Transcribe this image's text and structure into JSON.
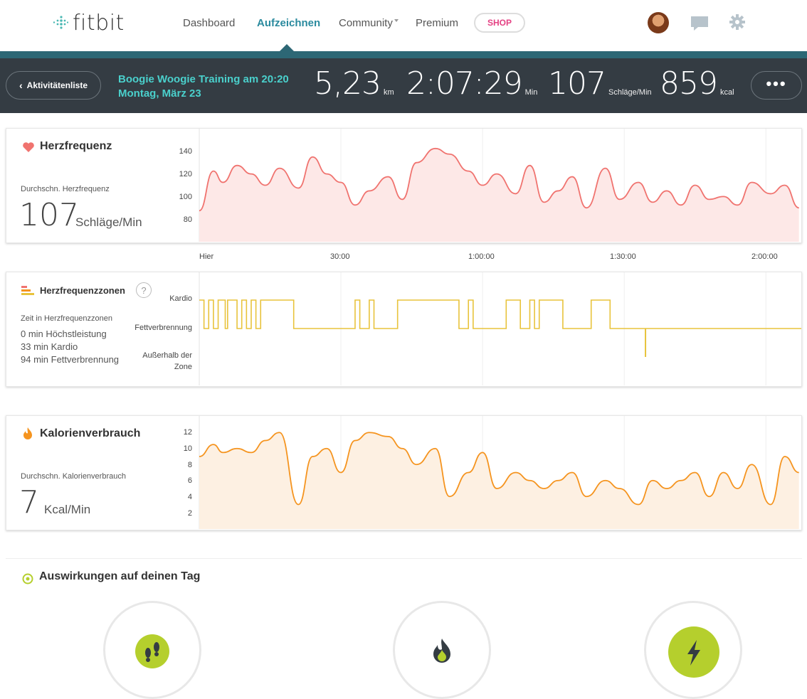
{
  "nav": {
    "logo": "fitbit",
    "links": [
      "Dashboard",
      "Aufzeichnen",
      "Community",
      "Premium"
    ],
    "shop": "SHOP"
  },
  "header": {
    "back": "Aktivitätenliste",
    "title": "Boogie Woogie Training am 20:20",
    "date": "Montag, März 23",
    "stats": [
      {
        "value": "5,23",
        "unit": "km"
      },
      {
        "value": "2:07:29",
        "unit": "Min"
      },
      {
        "value": "107",
        "unit": "Schläge/Min"
      },
      {
        "value": "859",
        "unit": "kcal"
      }
    ],
    "more": "•••"
  },
  "heart": {
    "title": "Herzfrequenz",
    "avg_label": "Durchschn. Herzfrequenz",
    "avg_value": "107",
    "avg_unit": "Schläge/Min",
    "yticks": [
      "140",
      "120",
      "100",
      "80"
    ]
  },
  "xaxis": [
    "Hier",
    "30:00",
    "1:00:00",
    "1:30:00",
    "2:00:00"
  ],
  "zones": {
    "title": "Herzfrequenzzonen",
    "help": "?",
    "time_label": "Zeit in Herzfrequenzzonen",
    "lines": [
      "0 min Höchstleistung",
      "33 min Kardio",
      "94 min Fettverbrennung"
    ],
    "levels": [
      "Kardio",
      "Fettverbrennung",
      "Außerhalb der",
      "Zone"
    ]
  },
  "calories": {
    "title": "Kalorienverbrauch",
    "avg_label": "Durchschn. Kalorienverbrauch",
    "avg_value": "7",
    "avg_unit": "Kcal/Min",
    "yticks": [
      "12",
      "10",
      "8",
      "6",
      "4",
      "2"
    ]
  },
  "impact": {
    "title": "Auswirkungen auf deinen Tag"
  },
  "chart_data": [
    {
      "type": "line",
      "title": "Herzfrequenz",
      "xlabel": "",
      "ylabel": "",
      "ylim": [
        70,
        150
      ],
      "color": "#f0736f",
      "x": [
        0,
        3,
        5,
        8,
        11,
        14,
        17,
        21,
        24,
        27,
        30,
        33,
        36,
        40,
        43,
        46,
        50,
        53,
        57,
        60,
        63,
        67,
        70,
        73,
        76,
        79,
        82,
        86,
        89,
        93,
        96,
        99,
        102,
        105,
        108,
        111,
        114,
        117,
        121,
        124,
        127
      ],
      "values": [
        92,
        120,
        112,
        124,
        118,
        110,
        122,
        108,
        130,
        118,
        112,
        96,
        106,
        116,
        100,
        126,
        136,
        132,
        120,
        110,
        118,
        104,
        124,
        98,
        106,
        116,
        94,
        122,
        100,
        112,
        98,
        106,
        96,
        110,
        100,
        102,
        96,
        112,
        104,
        110,
        94
      ]
    },
    {
      "type": "line",
      "title": "Herzfrequenzzonen",
      "color": "#e8c33c",
      "categories": [
        "Außerhalb der Zone",
        "Fettverbrennung",
        "Kardio"
      ]
    },
    {
      "type": "line",
      "title": "Kalorienverbrauch",
      "xlabel": "",
      "ylabel": "",
      "ylim": [
        0,
        12
      ],
      "color": "#f5941f",
      "x": [
        0,
        3,
        5,
        8,
        11,
        14,
        17,
        21,
        24,
        27,
        30,
        33,
        36,
        40,
        43,
        46,
        50,
        53,
        57,
        60,
        63,
        67,
        70,
        73,
        76,
        79,
        82,
        86,
        89,
        93,
        96,
        99,
        102,
        105,
        108,
        111,
        114,
        117,
        121,
        124,
        127
      ],
      "values": [
        8,
        9.5,
        8.5,
        9,
        8.5,
        10,
        11,
        2,
        8,
        9,
        6,
        10,
        11,
        10.5,
        9,
        7,
        9,
        3,
        6,
        8.5,
        4,
        6,
        5,
        4,
        5,
        6,
        3,
        5,
        4,
        2,
        5,
        4,
        5,
        6,
        3,
        6,
        4,
        7,
        2,
        8,
        6
      ]
    }
  ]
}
